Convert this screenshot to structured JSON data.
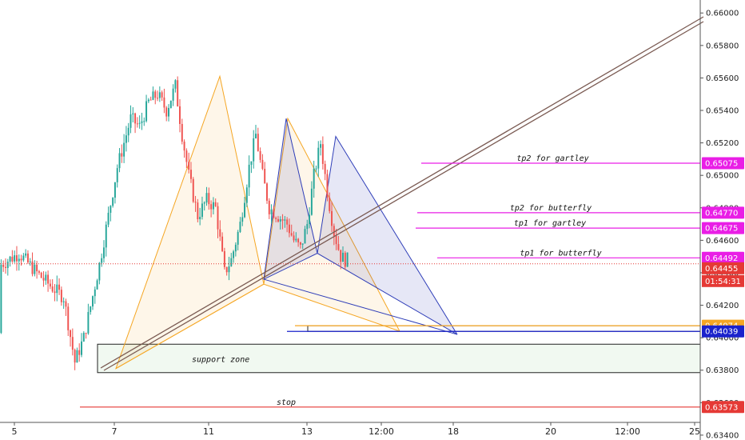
{
  "chart_data": {
    "type": "candlestick",
    "symbol_note": "price chart with harmonic patterns",
    "y_axis": {
      "ylim": [
        0.6337,
        0.6608
      ],
      "ticks": [
        "0.66000",
        "0.65800",
        "0.65600",
        "0.65400",
        "0.65200",
        "0.65000",
        "0.64800",
        "0.64600",
        "0.64400",
        "0.64200",
        "0.64000",
        "0.63800",
        "0.63600",
        "0.63400"
      ]
    },
    "x_axis": {
      "ticks": [
        "5",
        "7",
        "11",
        "13",
        "12:00",
        "18",
        "20",
        "12:00",
        "25"
      ]
    },
    "colors": {
      "up": "#26a69a",
      "down": "#ef5350",
      "pink": "#e91ee6",
      "blue": "#2e3db8",
      "orange": "#f5a623",
      "red": "#e53935"
    },
    "candles_summary": {
      "open_start": 0.6403,
      "segments": [
        [
          0,
          0.6445
        ],
        [
          8,
          0.6452
        ],
        [
          16,
          0.644
        ],
        [
          22,
          0.6432
        ],
        [
          28,
          0.6425
        ],
        [
          33,
          0.6385
        ],
        [
          37,
          0.64
        ],
        [
          44,
          0.6445
        ],
        [
          52,
          0.6505
        ],
        [
          58,
          0.6535
        ],
        [
          62,
          0.653
        ],
        [
          66,
          0.6545
        ],
        [
          70,
          0.655
        ],
        [
          74,
          0.654
        ],
        [
          78,
          0.6555
        ],
        [
          81,
          0.6525
        ],
        [
          84,
          0.65
        ],
        [
          88,
          0.6475
        ],
        [
          92,
          0.6485
        ],
        [
          96,
          0.648
        ],
        [
          100,
          0.644
        ],
        [
          103,
          0.6448
        ],
        [
          107,
          0.647
        ],
        [
          111,
          0.6505
        ],
        [
          114,
          0.6525
        ],
        [
          117,
          0.65
        ],
        [
          120,
          0.648
        ],
        [
          124,
          0.6475
        ],
        [
          128,
          0.647
        ],
        [
          131,
          0.646
        ],
        [
          134,
          0.6455
        ],
        [
          137,
          0.647
        ],
        [
          140,
          0.65
        ],
        [
          143,
          0.652
        ],
        [
          146,
          0.649
        ],
        [
          149,
          0.6465
        ],
        [
          152,
          0.645
        ],
        [
          154,
          0.6448
        ]
      ]
    },
    "levels": [
      {
        "label": "tp2 for gartley",
        "value": "0.65075",
        "color": "#e91ee6"
      },
      {
        "label": "tp2 for butterfly",
        "value": "0.64770",
        "color": "#e91ee6"
      },
      {
        "label": "tp1 for gartley",
        "value": "0.64675",
        "color": "#e91ee6"
      },
      {
        "label": "tp1 for butterfly",
        "value": "0.64492",
        "color": "#e91ee6"
      },
      {
        "label": "",
        "value": "0.64074",
        "color": "#f5a623"
      },
      {
        "label": "",
        "value": "0.64039",
        "color": "#1a22cc"
      },
      {
        "label": "stop",
        "value": "0.63573",
        "color": "#e53935"
      }
    ],
    "current_price": "0.64455",
    "countdown": "01:54:31",
    "annotations": [
      "support zone"
    ]
  }
}
